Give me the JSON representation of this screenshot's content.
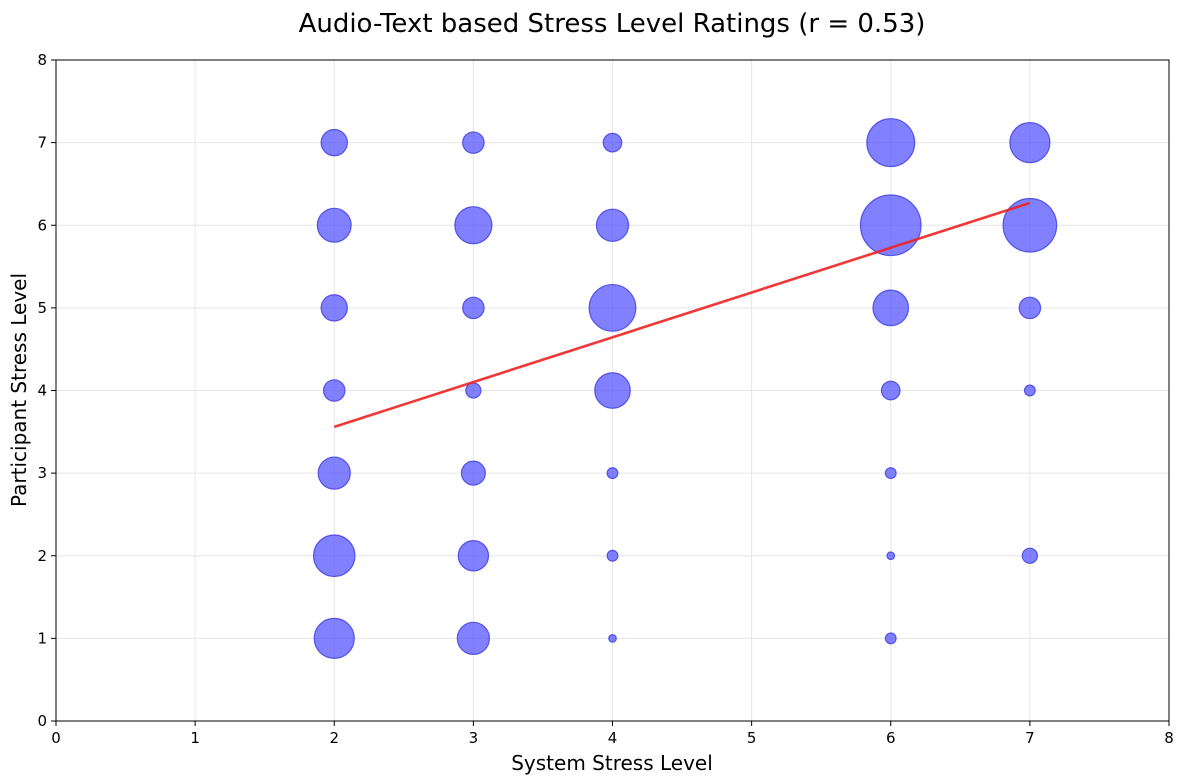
{
  "chart_data": {
    "type": "scatter",
    "title": "Audio-Text based Stress Level Ratings (r = 0.53)",
    "xlabel": "System Stress Level",
    "ylabel": "Participant Stress Level",
    "xlim": [
      0,
      8
    ],
    "ylim": [
      0,
      8
    ],
    "xticks": [
      "0",
      "1",
      "2",
      "3",
      "4",
      "5",
      "6",
      "7",
      "8"
    ],
    "yticks": [
      "0",
      "1",
      "2",
      "3",
      "4",
      "5",
      "6",
      "7",
      "8"
    ],
    "grid": true,
    "point_color": "#5050ff",
    "point_edge_color": "#3a3ae0",
    "trend_color": "#ee2222",
    "points": [
      {
        "x": 2,
        "y": 7,
        "count": 6
      },
      {
        "x": 2,
        "y": 6,
        "count": 10
      },
      {
        "x": 2,
        "y": 5,
        "count": 6
      },
      {
        "x": 2,
        "y": 4,
        "count": 4
      },
      {
        "x": 2,
        "y": 3,
        "count": 9
      },
      {
        "x": 2,
        "y": 2,
        "count": 15
      },
      {
        "x": 2,
        "y": 1,
        "count": 14
      },
      {
        "x": 3,
        "y": 7,
        "count": 4
      },
      {
        "x": 3,
        "y": 6,
        "count": 12
      },
      {
        "x": 3,
        "y": 5,
        "count": 4
      },
      {
        "x": 3,
        "y": 4,
        "count": 2
      },
      {
        "x": 3,
        "y": 3,
        "count": 5
      },
      {
        "x": 3,
        "y": 2,
        "count": 8
      },
      {
        "x": 3,
        "y": 1,
        "count": 9
      },
      {
        "x": 4,
        "y": 7,
        "count": 3
      },
      {
        "x": 4,
        "y": 6,
        "count": 9
      },
      {
        "x": 4,
        "y": 5,
        "count": 19
      },
      {
        "x": 4,
        "y": 4,
        "count": 11
      },
      {
        "x": 4,
        "y": 3,
        "count": 1
      },
      {
        "x": 4,
        "y": 2,
        "count": 1
      },
      {
        "x": 4,
        "y": 1,
        "count": 0.5
      },
      {
        "x": 6,
        "y": 7,
        "count": 20
      },
      {
        "x": 6,
        "y": 6,
        "count": 32
      },
      {
        "x": 6,
        "y": 5,
        "count": 11
      },
      {
        "x": 6,
        "y": 4,
        "count": 3
      },
      {
        "x": 6,
        "y": 3,
        "count": 1
      },
      {
        "x": 6,
        "y": 2,
        "count": 0.5
      },
      {
        "x": 6,
        "y": 1,
        "count": 1
      },
      {
        "x": 7,
        "y": 7,
        "count": 14
      },
      {
        "x": 7,
        "y": 6,
        "count": 25
      },
      {
        "x": 7,
        "y": 5,
        "count": 4
      },
      {
        "x": 7,
        "y": 4,
        "count": 1
      },
      {
        "x": 7,
        "y": 2,
        "count": 2
      }
    ],
    "trend_line": {
      "x": [
        2,
        7
      ],
      "y": [
        3.56,
        6.27
      ]
    }
  }
}
